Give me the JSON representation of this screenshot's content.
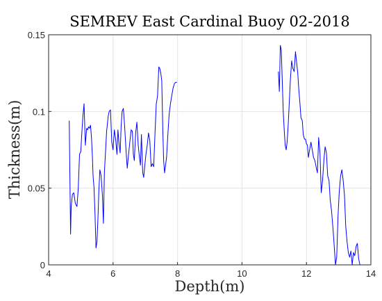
{
  "chart_data": {
    "type": "line",
    "title": "SEMREV East Cardinal Buoy 02-2018",
    "xlabel": "Depth(m)",
    "ylabel": "Thickness(m)",
    "xlim": [
      4,
      14
    ],
    "ylim": [
      0,
      0.15
    ],
    "xticks": [
      "4",
      "6",
      "8",
      "10",
      "12",
      "14"
    ],
    "yticks": [
      "0",
      "0.05",
      "0.1",
      "0.15"
    ],
    "grid": true,
    "line_color": "#0000ff",
    "segments": [
      {
        "x": [
          4.64,
          4.68,
          4.7,
          4.74,
          4.78,
          4.83,
          4.88,
          4.92,
          4.96,
          5.0,
          5.02,
          5.06,
          5.1,
          5.14,
          5.18,
          5.21,
          5.24,
          5.27,
          5.3,
          5.33,
          5.36,
          5.38,
          5.41,
          5.44,
          5.47,
          5.5,
          5.53,
          5.56,
          5.59,
          5.63,
          5.67,
          5.7,
          5.73,
          5.77,
          5.8,
          5.83,
          5.85,
          5.88,
          5.92,
          5.96,
          6.0,
          6.04,
          6.08,
          6.12,
          6.15,
          6.18,
          6.22,
          6.25,
          6.28,
          6.32,
          6.36,
          6.4,
          6.44,
          6.48,
          6.52,
          6.56,
          6.6,
          6.63,
          6.66,
          6.7,
          6.74,
          6.78,
          6.82,
          6.85,
          6.88,
          6.92,
          6.95,
          6.98,
          7.02,
          7.06,
          7.1,
          7.14,
          7.18,
          7.22,
          7.26,
          7.3,
          7.34,
          7.38,
          7.42,
          7.45,
          7.48,
          7.51,
          7.54,
          7.57,
          7.6,
          7.63,
          7.66,
          7.7,
          7.74,
          7.78,
          7.82,
          7.86,
          7.9,
          7.94,
          7.98
        ],
        "y": [
          0.094,
          0.02,
          0.038,
          0.046,
          0.047,
          0.04,
          0.038,
          0.05,
          0.072,
          0.074,
          0.082,
          0.096,
          0.105,
          0.078,
          0.089,
          0.088,
          0.09,
          0.089,
          0.091,
          0.083,
          0.07,
          0.058,
          0.05,
          0.033,
          0.011,
          0.015,
          0.03,
          0.049,
          0.062,
          0.058,
          0.045,
          0.027,
          0.06,
          0.075,
          0.087,
          0.093,
          0.097,
          0.1,
          0.101,
          0.08,
          0.075,
          0.088,
          0.082,
          0.072,
          0.088,
          0.08,
          0.073,
          0.09,
          0.1,
          0.102,
          0.09,
          0.075,
          0.063,
          0.072,
          0.08,
          0.088,
          0.087,
          0.072,
          0.068,
          0.086,
          0.093,
          0.078,
          0.07,
          0.065,
          0.085,
          0.06,
          0.057,
          0.064,
          0.072,
          0.078,
          0.086,
          0.081,
          0.064,
          0.066,
          0.064,
          0.085,
          0.105,
          0.11,
          0.129,
          0.128,
          0.125,
          0.12,
          0.09,
          0.068,
          0.06,
          0.065,
          0.07,
          0.085,
          0.098,
          0.105,
          0.11,
          0.115,
          0.118,
          0.119,
          0.119
        ]
      },
      {
        "x": [
          11.13,
          11.16,
          11.19,
          11.22,
          11.25,
          11.28,
          11.31,
          11.34,
          11.37,
          11.4,
          11.43,
          11.46,
          11.5,
          11.54,
          11.58,
          11.62,
          11.66,
          11.7,
          11.73,
          11.76,
          11.8,
          11.83,
          11.87,
          11.9,
          11.94,
          11.97,
          12.0,
          12.03,
          12.06,
          12.1,
          12.14,
          12.18,
          12.22,
          12.26,
          12.3,
          12.34,
          12.38,
          12.42,
          12.46,
          12.5,
          12.54,
          12.58,
          12.62,
          12.66,
          12.7,
          12.74,
          12.78,
          12.82,
          12.86,
          12.9,
          12.94,
          12.98,
          13.02,
          13.06,
          13.1,
          13.14,
          13.18,
          13.22,
          13.26,
          13.3,
          13.34,
          13.38,
          13.42,
          13.46,
          13.5,
          13.54,
          13.58,
          13.62,
          13.66
        ],
        "y": [
          0.126,
          0.113,
          0.143,
          0.14,
          0.12,
          0.1,
          0.088,
          0.078,
          0.075,
          0.08,
          0.09,
          0.102,
          0.12,
          0.133,
          0.128,
          0.126,
          0.139,
          0.131,
          0.125,
          0.115,
          0.105,
          0.096,
          0.094,
          0.085,
          0.082,
          0.082,
          0.079,
          0.078,
          0.07,
          0.075,
          0.08,
          0.075,
          0.07,
          0.068,
          0.064,
          0.06,
          0.083,
          0.073,
          0.047,
          0.055,
          0.068,
          0.077,
          0.073,
          0.058,
          0.055,
          0.042,
          0.035,
          0.025,
          0.013,
          0.0,
          0.005,
          0.032,
          0.048,
          0.058,
          0.062,
          0.055,
          0.045,
          0.025,
          0.015,
          0.008,
          0.005,
          0.009,
          0.0,
          0.008,
          0.006,
          0.012,
          0.014,
          0.004,
          0.0
        ]
      }
    ]
  }
}
